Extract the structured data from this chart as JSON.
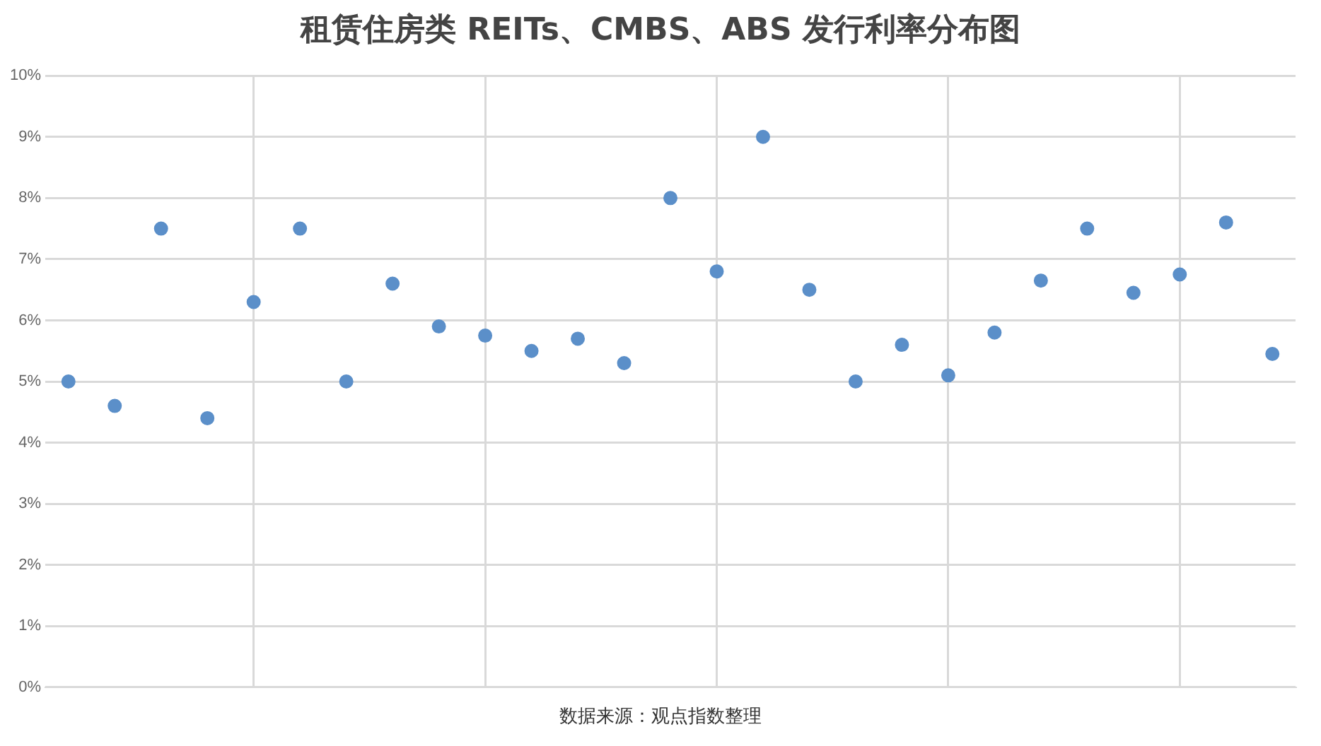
{
  "chart_data": {
    "type": "scatter",
    "title": "租赁住房类 REITs、CMBS、ABS 发行利率分布图",
    "categories": [
      null,
      null,
      null,
      null,
      null,
      null,
      null,
      null,
      null,
      null,
      null,
      null,
      null,
      null,
      null,
      null,
      null,
      null,
      null,
      null,
      null,
      null,
      null,
      null,
      null,
      null,
      null
    ],
    "series": [
      {
        "color": "#5b8fc9",
        "values": [
          5.0,
          4.6,
          7.5,
          4.4,
          6.3,
          7.5,
          5.0,
          6.6,
          5.9,
          5.75,
          5.5,
          5.7,
          5.3,
          8.0,
          6.8,
          9.0,
          6.5,
          5.0,
          5.6,
          5.1,
          5.8,
          6.65,
          7.5,
          6.45,
          6.75,
          7.6,
          5.45
        ]
      }
    ],
    "ylim": [
      0,
      10
    ],
    "yticks": [
      {
        "value": 0,
        "label": "0%"
      },
      {
        "value": 1,
        "label": "1%"
      },
      {
        "value": 2,
        "label": "2%"
      },
      {
        "value": 3,
        "label": "3%"
      },
      {
        "value": 4,
        "label": "4%"
      },
      {
        "value": 5,
        "label": "5%"
      },
      {
        "value": 6,
        "label": "6%"
      },
      {
        "value": 7,
        "label": "7%"
      },
      {
        "value": 8,
        "label": "8%"
      },
      {
        "value": 9,
        "label": "9%"
      },
      {
        "value": 10,
        "label": "10%"
      }
    ],
    "tick_labels": "y",
    "grid": true,
    "legend": false,
    "marker": "circle",
    "annotations": [
      "数据来源：观点指数整理"
    ]
  }
}
